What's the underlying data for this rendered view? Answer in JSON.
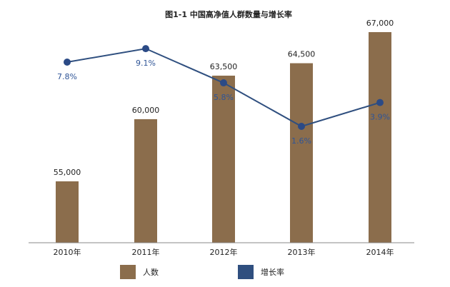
{
  "chart_data": {
    "type": "bar",
    "title": "图1-1 中国高净值人群数量与增长率",
    "categories": [
      "2010年",
      "2011年",
      "2012年",
      "2013年",
      "2014年"
    ],
    "series": [
      {
        "name": "人数",
        "type": "bar",
        "values": [
          55000,
          60000,
          63500,
          64500,
          67000
        ],
        "labels": [
          "55,000",
          "60,000",
          "63,500",
          "64,500",
          "67,000"
        ],
        "color": "#8b6d4c"
      },
      {
        "name": "增长率",
        "type": "line",
        "values": [
          7.8,
          9.1,
          5.8,
          1.6,
          3.9
        ],
        "labels": [
          "7.8%",
          "9.1%",
          "5.8%",
          "1.6%",
          "3.9%"
        ],
        "color": "#2f4f7f"
      }
    ],
    "grid": false,
    "legend": "bottom"
  }
}
